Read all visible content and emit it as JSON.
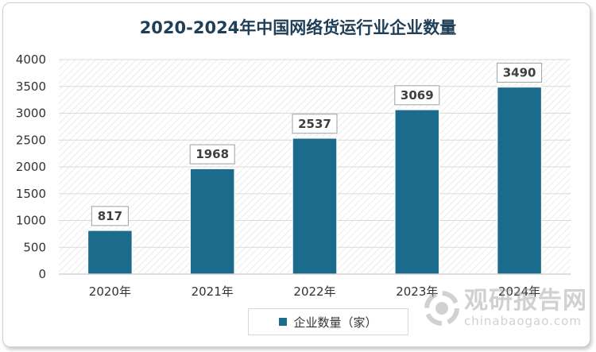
{
  "chart_data": {
    "type": "bar",
    "title": "2020-2024年中国网络货运行业企业数量",
    "categories": [
      "2020年",
      "2021年",
      "2022年",
      "2023年",
      "2024年"
    ],
    "series": [
      {
        "name": "企业数量（家）",
        "values": [
          817,
          1968,
          2537,
          3069,
          3490
        ]
      }
    ],
    "data_labels": [
      "817",
      "1968",
      "2537",
      "3069",
      "3490"
    ],
    "yticks": [
      "0",
      "500",
      "1000",
      "1500",
      "2000",
      "2500",
      "3000",
      "3500",
      "4000"
    ],
    "ylim": [
      0,
      4000
    ],
    "xlabel": "",
    "ylabel": "",
    "legend_position": "bottom",
    "bar_color": "#1b6b8c"
  },
  "watermark": {
    "cn": "观研报告网",
    "en": "chinabaogao.com"
  }
}
